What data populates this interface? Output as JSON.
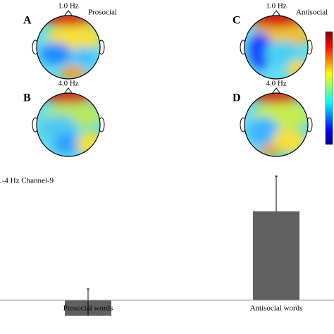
{
  "panels": [
    {
      "letter": "A",
      "frequency": "1.0 Hz",
      "condition": "Prosocial"
    },
    {
      "letter": "B",
      "frequency": "4.0 Hz"
    },
    {
      "letter": "C",
      "frequency": "1.0 Hz",
      "condition": "Antisocial"
    },
    {
      "letter": "D",
      "frequency": "4.0 Hz"
    }
  ],
  "chart_data": {
    "type": "bar",
    "title": ".-4 Hz Channel-9",
    "categories": [
      "Prosocial words",
      "Antisocial words"
    ],
    "values": [
      -0.22,
      1.26
    ],
    "errors": [
      0.38,
      0.5
    ],
    "color": "#606060",
    "ylim": [
      -0.48,
      1.86
    ]
  }
}
